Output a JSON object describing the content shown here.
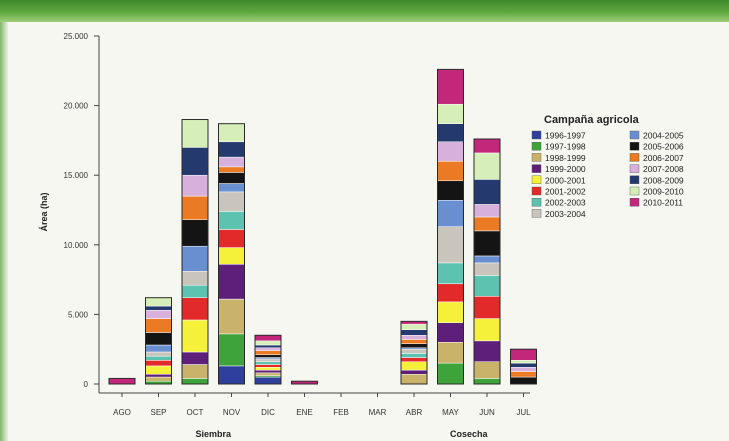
{
  "chart_data": {
    "type": "bar",
    "stacked": true,
    "ylabel": "Área (ha)",
    "ylim": [
      0,
      25000
    ],
    "yticks": [
      "0",
      "5.000",
      "10.000",
      "15.000",
      "20.000",
      "25.000"
    ],
    "ytick_values": [
      0,
      5000,
      10000,
      15000,
      20000,
      25000
    ],
    "categories": [
      "AGO",
      "SEP",
      "OCT",
      "NOV",
      "DIC",
      "ENE",
      "FEB",
      "MAR",
      "ABR",
      "MAY",
      "JUN",
      "JUL"
    ],
    "groups": [
      {
        "label": "Siembra",
        "from": 0,
        "to": 5
      },
      {
        "label": "Cosecha",
        "from": 8,
        "to": 11
      }
    ],
    "legend_title": "Campaña agricola",
    "legend_position": "right",
    "series": [
      {
        "name": "1996-1997",
        "color": "#2e3f9e",
        "values": [
          0,
          0,
          0,
          1300,
          500,
          0,
          0,
          0,
          0,
          0,
          0,
          0
        ]
      },
      {
        "name": "1997-1998",
        "color": "#3ea33a",
        "values": [
          0,
          200,
          400,
          2300,
          100,
          0,
          0,
          0,
          0,
          1500,
          400,
          0
        ]
      },
      {
        "name": "1998-1999",
        "color": "#c9b36a",
        "values": [
          0,
          300,
          1000,
          2500,
          200,
          0,
          0,
          0,
          700,
          1500,
          1200,
          0
        ]
      },
      {
        "name": "1999-2000",
        "color": "#5e1f7a",
        "values": [
          0,
          200,
          900,
          2500,
          200,
          0,
          0,
          0,
          300,
          1400,
          1500,
          0
        ]
      },
      {
        "name": "2000-2001",
        "color": "#f5f03a",
        "values": [
          0,
          600,
          2300,
          1200,
          200,
          0,
          0,
          0,
          600,
          1500,
          1600,
          0
        ]
      },
      {
        "name": "2001-2002",
        "color": "#e32a2a",
        "values": [
          0,
          400,
          1600,
          1300,
          200,
          0,
          0,
          0,
          300,
          1300,
          1600,
          0
        ]
      },
      {
        "name": "2002-2003",
        "color": "#5ec2b0",
        "values": [
          0,
          300,
          900,
          1300,
          200,
          0,
          0,
          0,
          300,
          1500,
          1500,
          0
        ]
      },
      {
        "name": "2003-2004",
        "color": "#c9c4bc",
        "values": [
          0,
          300,
          1000,
          1400,
          200,
          0,
          0,
          0,
          300,
          2600,
          900,
          0
        ]
      },
      {
        "name": "2004-2005",
        "color": "#6a8fd0",
        "values": [
          0,
          500,
          1800,
          600,
          100,
          0,
          0,
          0,
          100,
          1900,
          500,
          0
        ]
      },
      {
        "name": "2005-2006",
        "color": "#141414",
        "values": [
          0,
          900,
          1900,
          800,
          200,
          0,
          0,
          0,
          300,
          1400,
          1800,
          500
        ]
      },
      {
        "name": "2006-2007",
        "color": "#ea7a23",
        "values": [
          0,
          1000,
          1700,
          400,
          300,
          0,
          0,
          0,
          300,
          1400,
          1000,
          400
        ]
      },
      {
        "name": "2007-2008",
        "color": "#d7b0dc",
        "values": [
          0,
          600,
          1500,
          700,
          200,
          0,
          0,
          0,
          300,
          1400,
          900,
          300
        ]
      },
      {
        "name": "2008-2009",
        "color": "#243a6e",
        "values": [
          0,
          300,
          2000,
          1100,
          200,
          0,
          0,
          0,
          400,
          1300,
          1800,
          300
        ]
      },
      {
        "name": "2009-2010",
        "color": "#d6efb8",
        "values": [
          0,
          600,
          2000,
          1300,
          300,
          0,
          0,
          0,
          400,
          1400,
          1900,
          200
        ]
      },
      {
        "name": "2010-2011",
        "color": "#c2277a",
        "values": [
          400,
          0,
          0,
          0,
          400,
          200,
          0,
          0,
          200,
          2500,
          1000,
          800
        ]
      }
    ]
  }
}
